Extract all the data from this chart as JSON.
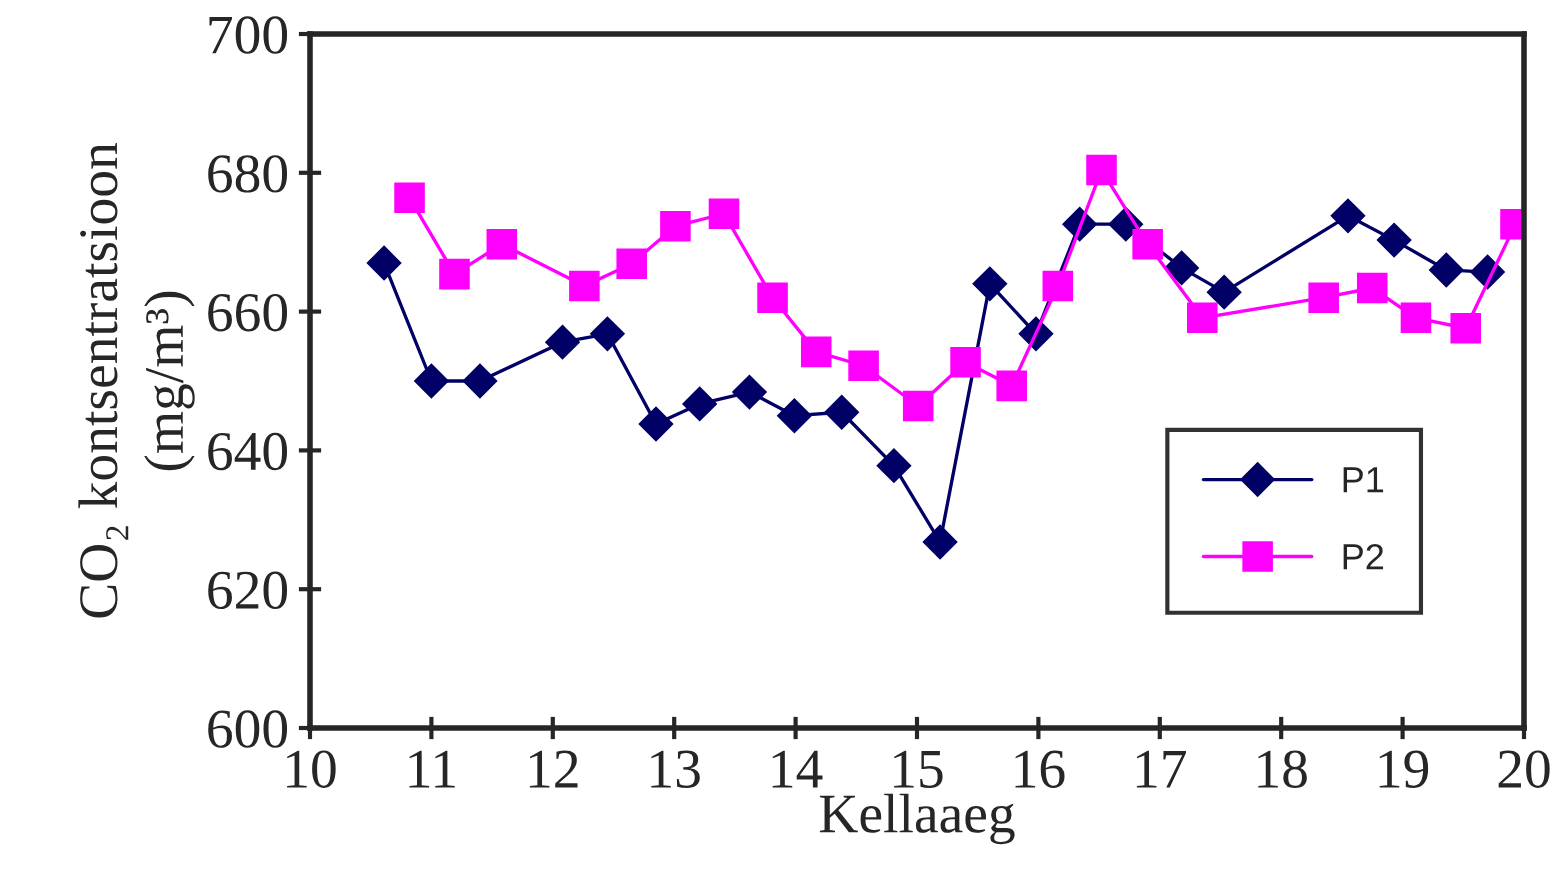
{
  "chart_data": {
    "type": "line",
    "xlabel": "Kellaaeg",
    "ylabel": "CO₂ kontsentratsioon\n(mg/m³)",
    "xlim": [
      10,
      20
    ],
    "xticks": [
      10,
      11,
      12,
      13,
      14,
      15,
      16,
      17,
      18,
      19,
      20
    ],
    "ylim": [
      600,
      700
    ],
    "yticks": [
      600,
      620,
      640,
      660,
      680,
      700
    ],
    "grid": false,
    "legend": "lower right",
    "series": [
      {
        "name": "P1",
        "color": "#000066",
        "marker": "diamond",
        "x": [
          10.61,
          11.0,
          11.4,
          12.08,
          12.45,
          12.85,
          13.21,
          13.62,
          13.99,
          14.38,
          14.81,
          15.19,
          15.6,
          15.98,
          16.34,
          16.72,
          17.18,
          17.53,
          18.55,
          18.93,
          19.36,
          19.7
        ],
        "values": [
          667,
          650,
          650,
          655.6,
          656.8,
          643.8,
          646.7,
          648.4,
          645,
          645.5,
          637.8,
          626.8,
          664,
          656.8,
          672.6,
          672.6,
          666.3,
          662.8,
          673.8,
          670.3,
          666,
          665.7
        ]
      },
      {
        "name": "P2",
        "color": "#ff00ff",
        "marker": "square",
        "x": [
          10.82,
          11.19,
          11.58,
          12.26,
          12.65,
          13.01,
          13.41,
          13.81,
          14.17,
          14.56,
          15.01,
          15.4,
          15.78,
          16.16,
          16.52,
          16.9,
          17.35,
          18.35,
          18.75,
          19.11,
          19.52,
          19.93
        ],
        "values": [
          676.4,
          665.4,
          669.7,
          663.7,
          666.9,
          672.3,
          674.1,
          662,
          654.2,
          652.2,
          646.4,
          652.7,
          649.3,
          663.7,
          680.4,
          669.7,
          659.1,
          662,
          663.4,
          659.1,
          657.6,
          672.6
        ]
      }
    ]
  }
}
